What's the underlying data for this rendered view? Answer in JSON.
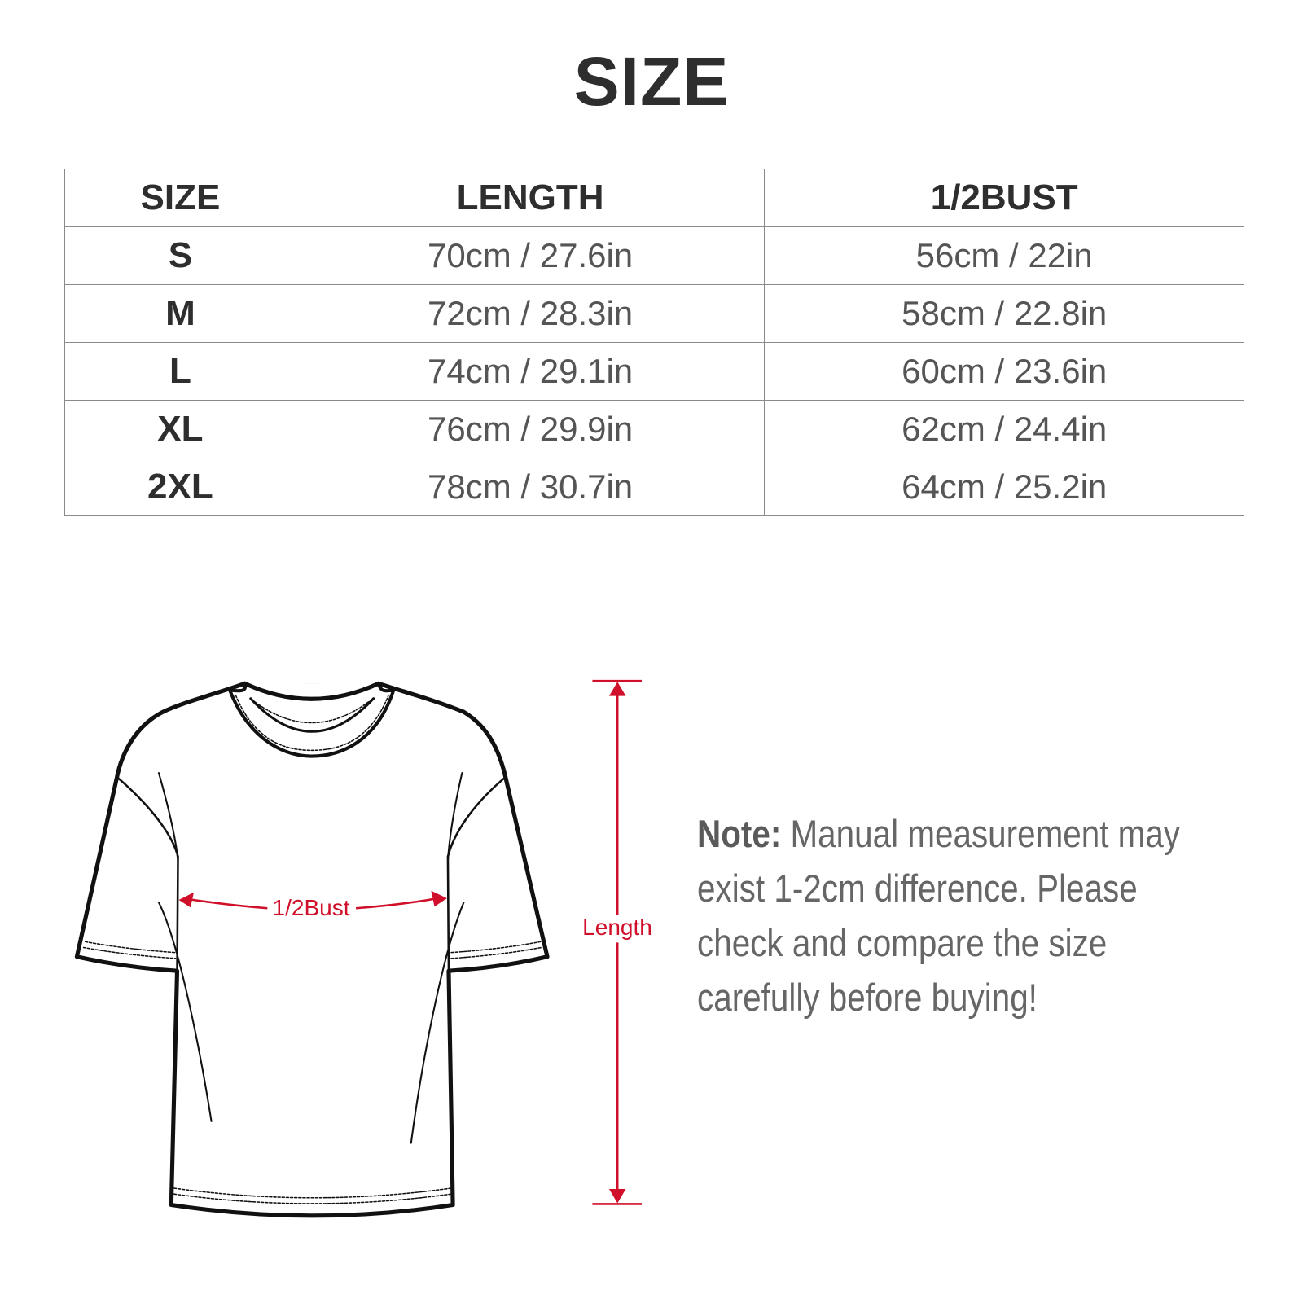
{
  "title": "SIZE",
  "table": {
    "headers": [
      "SIZE",
      "LENGTH",
      "1/2BUST"
    ],
    "rows": [
      {
        "size": "S",
        "length": "70cm / 27.6in",
        "bust": "56cm / 22in"
      },
      {
        "size": "M",
        "length": "72cm / 28.3in",
        "bust": "58cm / 22.8in"
      },
      {
        "size": "L",
        "length": "74cm / 29.1in",
        "bust": "60cm / 23.6in"
      },
      {
        "size": "XL",
        "length": "76cm / 29.9in",
        "bust": "62cm / 24.4in"
      },
      {
        "size": "2XL",
        "length": "78cm / 30.7in",
        "bust": "64cm / 25.2in"
      }
    ]
  },
  "diagram": {
    "bust_label": "1/2Bust",
    "length_label": "Length",
    "accent_color": "#d0102a"
  },
  "note": {
    "label": "Note:",
    "lines": [
      "Manual measurement may",
      "exist 1-2cm difference. Please",
      "check and compare the size",
      "carefully before buying!"
    ]
  }
}
